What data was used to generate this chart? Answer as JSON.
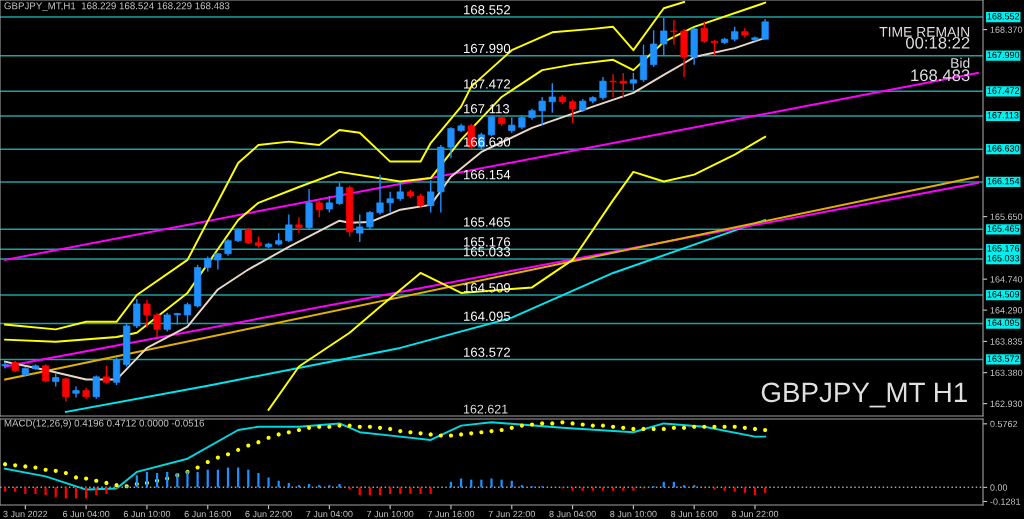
{
  "chart_data": [
    {
      "type": "candlestick",
      "title": "GBPJPY_MT,H1  168.229 168.524 168.229 168.483",
      "categories": [
        null,
        null,
        null,
        null,
        null,
        null,
        null,
        null,
        null,
        null,
        null,
        null,
        null,
        null,
        null,
        null,
        null,
        null,
        null,
        null,
        null,
        null,
        null,
        null,
        null,
        null,
        null,
        null,
        null,
        null,
        null,
        null,
        null,
        null,
        null,
        null,
        null,
        null,
        null,
        null,
        null,
        null,
        null,
        null,
        null,
        null,
        null,
        null,
        null,
        null,
        null,
        null,
        null,
        null,
        null,
        null,
        null,
        null,
        null,
        null,
        null,
        null,
        null,
        null,
        null,
        null,
        null,
        null,
        null,
        null,
        null,
        null,
        null,
        null,
        null,
        null,
        null,
        null,
        null,
        null,
        null,
        null,
        null,
        null,
        null,
        null,
        null,
        null,
        null,
        null,
        null,
        null,
        null,
        null,
        null,
        null,
        null
      ],
      "ohlc": [
        [
          163.48,
          163.53,
          163.44,
          163.5
        ],
        [
          163.53,
          163.55,
          163.39,
          163.41
        ],
        [
          163.35,
          163.46,
          163.33,
          163.44
        ],
        [
          163.44,
          163.5,
          163.42,
          163.48
        ],
        [
          163.48,
          163.5,
          163.24,
          163.26
        ],
        [
          163.25,
          163.37,
          163.18,
          163.31
        ],
        [
          163.29,
          163.31,
          162.96,
          163.03
        ],
        [
          163.08,
          163.18,
          163.02,
          163.12
        ],
        [
          163.12,
          163.16,
          163.0,
          163.03
        ],
        [
          163.03,
          163.34,
          163.0,
          163.32
        ],
        [
          163.32,
          163.48,
          163.22,
          163.24
        ],
        [
          163.24,
          163.6,
          163.2,
          163.57
        ],
        [
          163.5,
          164.09,
          163.47,
          164.06
        ],
        [
          164.06,
          164.45,
          164.03,
          164.38
        ],
        [
          164.38,
          164.44,
          164.04,
          164.22
        ],
        [
          164.22,
          164.25,
          163.9,
          164.01
        ],
        [
          164.01,
          164.25,
          163.98,
          164.22
        ],
        [
          164.22,
          164.25,
          164.08,
          164.24
        ],
        [
          164.22,
          164.4,
          164.1,
          164.37
        ],
        [
          164.35,
          164.95,
          164.33,
          164.91
        ],
        [
          164.91,
          165.07,
          164.85,
          165.04
        ],
        [
          165.02,
          165.12,
          164.88,
          165.11
        ],
        [
          165.11,
          165.32,
          165.08,
          165.3
        ],
        [
          165.3,
          165.48,
          165.28,
          165.46
        ],
        [
          165.46,
          165.48,
          165.25,
          165.27
        ],
        [
          165.27,
          165.36,
          165.2,
          165.23
        ],
        [
          165.21,
          165.27,
          165.19,
          165.25
        ],
        [
          165.25,
          165.41,
          165.23,
          165.3
        ],
        [
          165.3,
          165.68,
          165.28,
          165.53
        ],
        [
          165.53,
          165.64,
          165.41,
          165.49
        ],
        [
          165.49,
          166.05,
          165.46,
          165.85
        ],
        [
          165.85,
          165.88,
          165.64,
          165.75
        ],
        [
          165.76,
          165.95,
          165.71,
          165.85
        ],
        [
          165.84,
          166.14,
          165.82,
          166.08
        ],
        [
          166.07,
          166.1,
          165.36,
          165.43
        ],
        [
          165.41,
          165.68,
          165.28,
          165.5
        ],
        [
          165.5,
          165.73,
          165.47,
          165.71
        ],
        [
          165.71,
          166.26,
          165.68,
          165.85
        ],
        [
          165.85,
          166.01,
          165.71,
          165.91
        ],
        [
          165.91,
          166.14,
          165.88,
          166.01
        ],
        [
          166.01,
          166.04,
          165.92,
          165.95
        ],
        [
          165.95,
          165.98,
          165.78,
          165.81
        ],
        [
          165.81,
          166.18,
          165.71,
          166.01
        ],
        [
          166.01,
          166.69,
          165.71,
          166.66
        ],
        [
          166.66,
          166.95,
          166.5,
          166.93
        ],
        [
          166.9,
          167.0,
          166.88,
          166.97
        ],
        [
          166.97,
          167.0,
          166.63,
          166.66
        ],
        [
          166.66,
          166.87,
          166.63,
          166.84
        ],
        [
          166.84,
          167.12,
          166.82,
          167.1
        ],
        [
          167.09,
          167.12,
          166.97,
          167.0
        ],
        [
          166.9,
          167.09,
          166.87,
          166.98
        ],
        [
          166.95,
          167.12,
          166.92,
          167.09
        ],
        [
          167.09,
          167.22,
          167.06,
          167.19
        ],
        [
          167.19,
          167.39,
          166.98,
          167.33
        ],
        [
          167.32,
          167.59,
          167.16,
          167.39
        ],
        [
          167.39,
          167.42,
          167.29,
          167.32
        ],
        [
          167.32,
          167.35,
          167.01,
          167.22
        ],
        [
          167.2,
          167.36,
          167.17,
          167.33
        ],
        [
          167.33,
          167.4,
          167.3,
          167.38
        ],
        [
          167.38,
          167.68,
          167.35,
          167.62
        ],
        [
          167.62,
          167.72,
          167.39,
          167.61
        ],
        [
          167.62,
          167.74,
          167.39,
          167.59
        ],
        [
          167.59,
          167.74,
          167.49,
          167.64
        ],
        [
          167.64,
          168.15,
          167.61,
          167.99
        ],
        [
          167.86,
          168.36,
          167.83,
          168.16
        ],
        [
          168.16,
          168.54,
          168.0,
          168.35
        ],
        [
          168.35,
          168.51,
          168.15,
          168.34
        ],
        [
          168.35,
          168.38,
          167.68,
          167.97
        ],
        [
          167.97,
          168.4,
          167.86,
          168.38
        ],
        [
          168.39,
          168.49,
          168.18,
          168.2
        ],
        [
          168.2,
          168.22,
          168.0,
          168.18
        ],
        [
          168.18,
          168.25,
          168.16,
          168.23
        ],
        [
          168.23,
          168.41,
          168.2,
          168.34
        ],
        [
          168.34,
          168.39,
          168.26,
          168.29
        ],
        [
          168.22,
          168.27,
          168.2,
          168.25
        ],
        [
          168.229,
          168.524,
          168.229,
          168.483
        ],
        null,
        null,
        null,
        null,
        null,
        null,
        null,
        null,
        null,
        null,
        null,
        null,
        null,
        null,
        null,
        null,
        null,
        null,
        null,
        null,
        null
      ],
      "colors": [
        "#1e90ff",
        "#ff0000",
        "#1e90ff",
        "#1e90ff",
        "#ff0000",
        "#1e90ff",
        "#ff0000",
        "#1e90ff",
        "#ff0000",
        "#1e90ff",
        "#ff0000",
        "#1e90ff",
        "#1e90ff",
        "#1e90ff",
        "#ff0000",
        "#ff0000",
        "#1e90ff",
        "#1e90ff",
        "#1e90ff",
        "#1e90ff",
        "#1e90ff",
        "#1e90ff",
        "#1e90ff",
        "#1e90ff",
        "#ff0000",
        "#ff0000",
        "#1e90ff",
        "#1e90ff",
        "#1e90ff",
        "#ff0000",
        "#1e90ff",
        "#ff0000",
        "#1e90ff",
        "#1e90ff",
        "#ff0000",
        "#1e90ff",
        "#1e90ff",
        "#1e90ff",
        "#1e90ff",
        "#1e90ff",
        "#ff0000",
        "#ff0000",
        "#1e90ff",
        "#1e90ff",
        "#1e90ff",
        "#1e90ff",
        "#ff0000",
        "#1e90ff",
        "#1e90ff",
        "#ff0000",
        "#1e90ff",
        "#1e90ff",
        "#1e90ff",
        "#1e90ff",
        "#1e90ff",
        "#ff0000",
        "#ff0000",
        "#1e90ff",
        "#1e90ff",
        "#1e90ff",
        "#ff0000",
        "#ff0000",
        "#1e90ff",
        "#1e90ff",
        "#1e90ff",
        "#1e90ff",
        "#ff0000",
        "#ff0000",
        "#1e90ff",
        "#ff0000",
        "#ff0000",
        "#1e90ff",
        "#1e90ff",
        "#ff0000",
        "#1e90ff",
        "#1e90ff",
        null,
        null,
        null,
        null,
        null,
        null,
        null,
        null,
        null,
        null,
        null,
        null,
        null,
        null,
        null,
        null,
        null,
        null,
        null,
        null,
        null
      ],
      "series": [
        {
          "type": "line",
          "color": "#00e5ee",
          "values": [
            null,
            null,
            null,
            null,
            null,
            null,
            162.81,
            null,
            null,
            null,
            null,
            null,
            null,
            null,
            null,
            null,
            null,
            null,
            null,
            null,
            163.19,
            null,
            null,
            null,
            null,
            null,
            null,
            null,
            null,
            null,
            null,
            null,
            null,
            null,
            null,
            null,
            null,
            null,
            null,
            163.74,
            null,
            null,
            null,
            null,
            null,
            null,
            null,
            null,
            null,
            null,
            164.18,
            null,
            null,
            null,
            null,
            null,
            null,
            null,
            null,
            null,
            164.83,
            null,
            null,
            null,
            null,
            null,
            null,
            null,
            null,
            null,
            null,
            null,
            null,
            165.5,
            null,
            165.6,
            null,
            null,
            null,
            null,
            null,
            null,
            null,
            null,
            null,
            null,
            null,
            null,
            null,
            null,
            null,
            null,
            null,
            null,
            null,
            null,
            null
          ]
        },
        {
          "type": "line",
          "color": "#ff00ff",
          "values": [
            165.02,
            null,
            null,
            null,
            null,
            null,
            null,
            null,
            null,
            null,
            null,
            null,
            null,
            null,
            null,
            null,
            null,
            null,
            null,
            null,
            null,
            null,
            null,
            null,
            null,
            null,
            null,
            null,
            null,
            null,
            null,
            null,
            null,
            null,
            null,
            null,
            null,
            null,
            null,
            null,
            null,
            null,
            null,
            null,
            null,
            null,
            null,
            null,
            null,
            null,
            null,
            null,
            null,
            null,
            null,
            null,
            null,
            null,
            null,
            null,
            null,
            null,
            null,
            null,
            null,
            null,
            null,
            null,
            null,
            null,
            null,
            null,
            null,
            null,
            null,
            null,
            null,
            null,
            null,
            null,
            null,
            null,
            null,
            null,
            null,
            null,
            null,
            null,
            null,
            null,
            null,
            null,
            null,
            null,
            null,
            null,
            167.74
          ]
        },
        {
          "type": "line",
          "color": "#ff00ff",
          "values": [
            163.47,
            null,
            null,
            null,
            null,
            null,
            null,
            null,
            null,
            null,
            null,
            null,
            null,
            null,
            null,
            null,
            null,
            null,
            null,
            null,
            null,
            null,
            null,
            null,
            null,
            null,
            null,
            null,
            null,
            null,
            null,
            null,
            null,
            null,
            null,
            null,
            null,
            null,
            null,
            null,
            null,
            null,
            null,
            null,
            null,
            null,
            null,
            null,
            null,
            null,
            null,
            null,
            null,
            null,
            null,
            null,
            null,
            null,
            null,
            null,
            null,
            null,
            null,
            null,
            null,
            null,
            null,
            null,
            null,
            null,
            null,
            null,
            null,
            null,
            null,
            null,
            null,
            null,
            null,
            null,
            null,
            null,
            null,
            null,
            null,
            null,
            null,
            null,
            null,
            null,
            null,
            null,
            null,
            null,
            null,
            null,
            166.14
          ]
        },
        {
          "type": "line",
          "color": "#e0b000",
          "values": [
            163.28,
            null,
            null,
            null,
            null,
            null,
            null,
            null,
            null,
            null,
            null,
            null,
            null,
            null,
            null,
            null,
            null,
            null,
            null,
            null,
            null,
            null,
            null,
            null,
            null,
            null,
            null,
            null,
            null,
            null,
            null,
            null,
            null,
            null,
            null,
            null,
            null,
            null,
            null,
            null,
            null,
            null,
            null,
            null,
            null,
            null,
            null,
            null,
            null,
            null,
            null,
            null,
            null,
            null,
            null,
            null,
            null,
            null,
            null,
            null,
            null,
            null,
            null,
            null,
            null,
            null,
            null,
            null,
            null,
            null,
            null,
            null,
            null,
            null,
            null,
            null,
            null,
            null,
            null,
            null,
            null,
            null,
            null,
            null,
            null,
            null,
            null,
            null,
            null,
            null,
            null,
            null,
            null,
            null,
            null,
            null,
            166.23
          ]
        },
        {
          "type": "line",
          "color": "#ffff00",
          "values": [
            164.08,
            null,
            null,
            null,
            null,
            164.01,
            null,
            null,
            164.12,
            null,
            null,
            164.12,
            null,
            164.51,
            null,
            null,
            null,
            null,
            165.02,
            null,
            null,
            null,
            null,
            166.43,
            null,
            166.69,
            null,
            null,
            166.74,
            null,
            null,
            166.69,
            null,
            166.91,
            null,
            166.87,
            null,
            null,
            166.45,
            null,
            null,
            166.45,
            166.72,
            null,
            null,
            167.25,
            167.54,
            null,
            null,
            null,
            168.07,
            null,
            null,
            null,
            168.33,
            null,
            null,
            null,
            168.38,
            null,
            168.41,
            null,
            168.07,
            null,
            null,
            168.68,
            null,
            168.77,
            null,
            null,
            null,
            null,
            null,
            null,
            null,
            null,
            null,
            null,
            null,
            null,
            null,
            null,
            null,
            null,
            null,
            null,
            null,
            null,
            null,
            null,
            null,
            null,
            null,
            null,
            null,
            null,
            null
          ]
        },
        {
          "type": "line",
          "color": "#ffff00",
          "values": [
            163.86,
            null,
            null,
            null,
            null,
            163.83,
            null,
            null,
            null,
            null,
            null,
            163.9,
            null,
            163.96,
            null,
            null,
            null,
            null,
            164.54,
            null,
            null,
            null,
            null,
            165.6,
            null,
            165.85,
            null,
            null,
            null,
            166.08,
            null,
            null,
            null,
            166.3,
            null,
            null,
            null,
            null,
            null,
            166.16,
            null,
            null,
            166.21,
            null,
            null,
            166.77,
            null,
            null,
            null,
            167.39,
            null,
            null,
            null,
            167.78,
            null,
            null,
            167.86,
            null,
            null,
            null,
            167.93,
            null,
            167.78,
            null,
            null,
            168.19,
            null,
            null,
            168.41,
            null,
            null,
            null,
            null,
            null,
            null,
            168.76,
            null,
            null,
            null,
            null,
            null,
            null,
            null,
            null,
            null,
            null,
            null,
            null,
            null,
            null,
            null,
            null,
            null,
            null,
            null,
            null,
            null
          ]
        },
        {
          "type": "line",
          "color": "#ffff00",
          "values": [
            null,
            null,
            null,
            null,
            null,
            null,
            null,
            null,
            null,
            null,
            null,
            null,
            null,
            null,
            null,
            null,
            null,
            null,
            null,
            null,
            null,
            null,
            null,
            null,
            null,
            null,
            162.84,
            null,
            null,
            163.47,
            null,
            null,
            null,
            null,
            163.96,
            null,
            null,
            164.34,
            null,
            null,
            null,
            164.83,
            null,
            null,
            null,
            164.54,
            null,
            null,
            null,
            null,
            null,
            null,
            164.62,
            null,
            null,
            null,
            165.02,
            null,
            null,
            null,
            165.89,
            null,
            166.3,
            null,
            null,
            166.16,
            null,
            null,
            166.26,
            null,
            null,
            null,
            166.55,
            null,
            null,
            166.81,
            null,
            null,
            null,
            null,
            null,
            null,
            null,
            null,
            null,
            null,
            null,
            null,
            null,
            null,
            null,
            null,
            null,
            null,
            null,
            null,
            null
          ]
        },
        {
          "type": "line",
          "color": "#e8d8c8",
          "values": [
            163.54,
            null,
            null,
            null,
            163.42,
            null,
            null,
            null,
            163.28,
            null,
            null,
            163.28,
            null,
            null,
            163.74,
            null,
            null,
            null,
            164.05,
            null,
            null,
            164.59,
            null,
            null,
            164.88,
            null,
            null,
            null,
            165.21,
            null,
            null,
            null,
            null,
            165.59,
            165.56,
            null,
            165.57,
            null,
            null,
            165.75,
            null,
            null,
            165.82,
            null,
            166.23,
            null,
            null,
            166.59,
            null,
            null,
            null,
            null,
            166.94,
            null,
            null,
            null,
            null,
            null,
            167.25,
            null,
            null,
            null,
            167.45,
            null,
            null,
            167.71,
            null,
            167.88,
            167.97,
            null,
            null,
            null,
            168.1,
            null,
            null,
            168.25,
            null,
            null,
            null,
            null,
            null,
            null,
            null,
            null,
            null,
            null,
            null,
            null,
            null,
            null,
            null,
            null,
            null,
            null,
            null,
            null,
            null
          ]
        }
      ],
      "ref_lines": [
        {
          "axis": "y",
          "value": 168.552,
          "label": "168.552",
          "color": "#1fa0a0"
        },
        {
          "axis": "y",
          "value": 167.99,
          "label": "167.990",
          "color": "#1fa0a0"
        },
        {
          "axis": "y",
          "value": 167.472,
          "label": "167.472",
          "color": "#1fa0a0"
        },
        {
          "axis": "y",
          "value": 167.113,
          "label": "167.113",
          "color": "#1fa0a0"
        },
        {
          "axis": "y",
          "value": 166.63,
          "label": "166.630",
          "color": "#1fa0a0"
        },
        {
          "axis": "y",
          "value": 166.154,
          "label": "166.154",
          "color": "#1fa0a0"
        },
        {
          "axis": "y",
          "value": 165.465,
          "label": "165.465",
          "color": "#1fa0a0"
        },
        {
          "axis": "y",
          "value": 165.176,
          "label": "165.176",
          "color": "#1fa0a0"
        },
        {
          "axis": "y",
          "value": 165.033,
          "label": "165.033",
          "color": "#1fa0a0"
        },
        {
          "axis": "y",
          "value": 164.509,
          "label": "164.509",
          "color": "#1fa0a0"
        },
        {
          "axis": "y",
          "value": 164.095,
          "label": "164.095",
          "color": "#1fa0a0"
        },
        {
          "axis": "y",
          "value": 163.572,
          "label": "163.572",
          "color": "#1fa0a0"
        }
      ],
      "annotations": [
        "TIME REMAIN",
        "00:18:22",
        "Bid",
        "168.483",
        "GBPJPY_MT H1",
        "162.621"
      ],
      "ylim": [
        162.75,
        168.8
      ],
      "yticks": [
        {
          "value": 168.37,
          "label": "168.370"
        },
        {
          "value": 165.65,
          "label": "165.650"
        },
        {
          "value": 164.74,
          "label": "164.740"
        },
        {
          "value": 164.29,
          "label": "164.290"
        },
        {
          "value": 163.835,
          "label": "163.835"
        },
        {
          "value": 163.38,
          "label": "163.380"
        },
        {
          "value": 162.93,
          "label": "162.930"
        }
      ],
      "tick_labels": "y"
    },
    {
      "type": "bar",
      "title": "MACD(12,26,9) 0.4196 0.4712 0.0000 -0.0516",
      "categories": [
        null,
        null,
        "3 Jun 2022",
        null,
        null,
        null,
        null,
        null,
        "6 Jun 04:00",
        null,
        null,
        null,
        null,
        null,
        "6 Jun 10:00",
        null,
        null,
        null,
        null,
        null,
        "6 Jun 16:00",
        null,
        null,
        null,
        null,
        null,
        "6 Jun 22:00",
        null,
        null,
        null,
        null,
        null,
        "7 Jun 04:00",
        null,
        null,
        null,
        null,
        null,
        "7 Jun 10:00",
        null,
        null,
        null,
        null,
        null,
        "7 Jun 16:00",
        null,
        null,
        null,
        null,
        null,
        "7 Jun 22:00",
        null,
        null,
        null,
        null,
        null,
        "8 Jun 04:00",
        null,
        null,
        null,
        null,
        null,
        "8 Jun 10:00",
        null,
        null,
        null,
        null,
        null,
        "8 Jun 16:00",
        null,
        null,
        null,
        null,
        null,
        "8 Jun 22:00",
        null,
        null,
        null,
        null,
        null,
        null,
        null,
        null,
        null,
        null,
        null,
        null,
        null,
        null,
        null,
        null,
        null,
        null,
        null,
        null,
        null,
        null
      ],
      "series": [
        {
          "type": "bar",
          "values": [
            -0.04,
            -0.04,
            -0.06,
            -0.06,
            -0.07,
            -0.09,
            -0.1,
            -0.1,
            -0.1,
            -0.07,
            -0.06,
            -0.01,
            0.01,
            0.11,
            0.14,
            0.13,
            0.14,
            0.13,
            0.15,
            0.14,
            0.16,
            0.16,
            0.18,
            0.18,
            0.16,
            0.13,
            0.09,
            0.06,
            0.04,
            0.02,
            0.03,
            0.02,
            0.02,
            0.03,
            -0.02,
            -0.07,
            -0.07,
            -0.07,
            -0.06,
            -0.06,
            -0.06,
            -0.06,
            -0.06,
            0.0,
            0.05,
            0.08,
            0.07,
            0.07,
            0.08,
            0.07,
            0.06,
            0.02,
            0.01,
            0.01,
            0.0,
            -0.01,
            -0.03,
            -0.03,
            -0.03,
            -0.03,
            -0.03,
            -0.03,
            -0.03,
            -0.01,
            0.01,
            0.05,
            0.05,
            0.02,
            0.02,
            0.0,
            -0.02,
            -0.03,
            -0.04,
            -0.05,
            -0.07,
            -0.05,
            null,
            null,
            null,
            null,
            null,
            null,
            null,
            null,
            null,
            null,
            null,
            null,
            null,
            null,
            null,
            null,
            null,
            null,
            null,
            null,
            null
          ],
          "colors": [
            "#ff0000",
            "#ff0000",
            "#ff0000",
            "#ff0000",
            "#ff0000",
            "#ff0000",
            "#ff0000",
            "#ff0000",
            "#ff0000",
            "#ff0000",
            "#ff0000",
            "#ff0000",
            "#1e90ff",
            "#1e90ff",
            "#1e90ff",
            "#1e90ff",
            "#1e90ff",
            "#1e90ff",
            "#1e90ff",
            "#1e90ff",
            "#1e90ff",
            "#1e90ff",
            "#1e90ff",
            "#1e90ff",
            "#1e90ff",
            "#1e90ff",
            "#1e90ff",
            "#1e90ff",
            "#1e90ff",
            "#1e90ff",
            "#1e90ff",
            "#1e90ff",
            "#1e90ff",
            "#1e90ff",
            "#ff0000",
            "#ff0000",
            "#ff0000",
            "#ff0000",
            "#ff0000",
            "#ff0000",
            "#ff0000",
            "#ff0000",
            "#ff0000",
            "#1e90ff",
            "#1e90ff",
            "#1e90ff",
            "#1e90ff",
            "#1e90ff",
            "#1e90ff",
            "#1e90ff",
            "#1e90ff",
            "#1e90ff",
            "#1e90ff",
            "#1e90ff",
            "#1e90ff",
            "#ff0000",
            "#ff0000",
            "#ff0000",
            "#ff0000",
            "#ff0000",
            "#ff0000",
            "#ff0000",
            "#ff0000",
            "#ff0000",
            "#1e90ff",
            "#1e90ff",
            "#1e90ff",
            "#1e90ff",
            "#1e90ff",
            "#1e90ff",
            "#ff0000",
            "#ff0000",
            "#ff0000",
            "#ff0000",
            "#ff0000",
            "#ff0000",
            null,
            null,
            null,
            null,
            null,
            null,
            null,
            null,
            null,
            null,
            null,
            null,
            null,
            null,
            null,
            null,
            null,
            null,
            null,
            null,
            null
          ]
        },
        {
          "type": "line",
          "color": "#00d8e0",
          "values": [
            0.17,
            null,
            null,
            null,
            0.1,
            null,
            null,
            null,
            -0.02,
            null,
            null,
            -0.01,
            null,
            0.14,
            null,
            null,
            null,
            null,
            0.26,
            null,
            null,
            null,
            null,
            0.52,
            null,
            0.55,
            null,
            null,
            null,
            0.55,
            null,
            null,
            null,
            0.58,
            null,
            0.5,
            null,
            null,
            null,
            0.46,
            null,
            null,
            0.43,
            null,
            null,
            0.56,
            null,
            null,
            0.59,
            null,
            null,
            null,
            null,
            null,
            null,
            0.54,
            null,
            null,
            null,
            null,
            null,
            null,
            0.5,
            null,
            null,
            0.58,
            null,
            null,
            null,
            0.55,
            null,
            null,
            null,
            null,
            0.46,
            0.46,
            null,
            null,
            null,
            null,
            null,
            null,
            null,
            null,
            null,
            null,
            null,
            null,
            null,
            null,
            null,
            null,
            null,
            null,
            null,
            null,
            null
          ]
        },
        {
          "type": "scatter",
          "color": "#ffff00",
          "marker": "circle",
          "values": [
            0.21,
            0.2,
            0.19,
            0.18,
            0.16,
            0.15,
            0.13,
            0.09,
            0.08,
            0.06,
            0.04,
            0.02,
            0.01,
            0.03,
            0.04,
            0.06,
            0.08,
            0.11,
            0.14,
            0.18,
            0.23,
            0.27,
            0.3,
            0.34,
            0.38,
            0.41,
            0.45,
            0.48,
            0.5,
            0.52,
            0.54,
            0.55,
            0.55,
            0.56,
            0.56,
            0.55,
            0.55,
            0.54,
            0.53,
            0.51,
            0.5,
            0.49,
            0.48,
            0.47,
            0.47,
            0.48,
            0.49,
            0.5,
            0.51,
            0.52,
            0.54,
            0.56,
            0.57,
            0.58,
            0.58,
            0.59,
            0.58,
            0.57,
            0.56,
            0.56,
            0.55,
            0.54,
            0.53,
            0.53,
            0.53,
            0.53,
            0.54,
            0.54,
            0.55,
            0.55,
            0.55,
            0.55,
            0.55,
            0.54,
            0.53,
            0.52,
            null,
            null,
            null,
            null,
            null,
            null,
            null,
            null,
            null,
            null,
            null,
            null,
            null,
            null,
            null,
            null,
            null,
            null,
            null,
            null,
            null
          ]
        }
      ],
      "ref_lines": [
        {
          "axis": "y",
          "value": 0,
          "label": null,
          "color": "#a0a0a0",
          "line_style": "dotted"
        }
      ],
      "ylim": [
        -0.16,
        0.62
      ],
      "yticks": [
        0.5762,
        {
          "value": 0,
          "label": "0.00"
        },
        -0.1281
      ]
    }
  ]
}
